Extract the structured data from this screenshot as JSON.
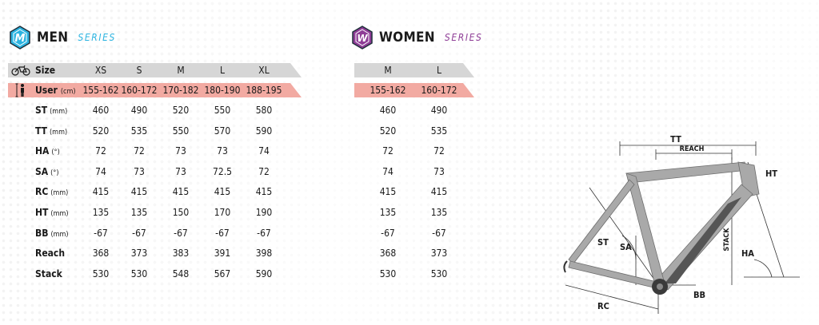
{
  "men": {
    "title": "MEN",
    "series_word": "SERIES",
    "accent": "#2bb3e0",
    "sizes": [
      "XS",
      "S",
      "M",
      "L",
      "XL"
    ],
    "users": [
      "155-162",
      "160-172",
      "170-182",
      "180-190",
      "188-195"
    ]
  },
  "women": {
    "title": "WOMEN",
    "series_word": "SERIES",
    "accent": "#8e3d96",
    "sizes": [
      "M",
      "L"
    ],
    "users": [
      "155-162",
      "160-172"
    ]
  },
  "header": {
    "size_label": "Size",
    "user_label": "User",
    "user_unit": "(cm)",
    "size_icon": "bicycle-icon",
    "user_icon": "person-height-icon"
  },
  "rows": [
    {
      "label": "ST",
      "unit": "(mm)",
      "men": [
        "460",
        "490",
        "520",
        "550",
        "580"
      ],
      "women": [
        "460",
        "490"
      ]
    },
    {
      "label": "TT",
      "unit": "(mm)",
      "men": [
        "520",
        "535",
        "550",
        "570",
        "590"
      ],
      "women": [
        "520",
        "535"
      ]
    },
    {
      "label": "HA",
      "unit": "(°)",
      "men": [
        "72",
        "72",
        "73",
        "73",
        "74"
      ],
      "women": [
        "72",
        "72"
      ]
    },
    {
      "label": "SA",
      "unit": "(°)",
      "men": [
        "74",
        "73",
        "73",
        "72.5",
        "72"
      ],
      "women": [
        "74",
        "73"
      ]
    },
    {
      "label": "RC",
      "unit": "(mm)",
      "men": [
        "415",
        "415",
        "415",
        "415",
        "415"
      ],
      "women": [
        "415",
        "415"
      ]
    },
    {
      "label": "HT",
      "unit": "(mm)",
      "men": [
        "135",
        "135",
        "150",
        "170",
        "190"
      ],
      "women": [
        "135",
        "135"
      ]
    },
    {
      "label": "BB",
      "unit": "(mm)",
      "men": [
        "-67",
        "-67",
        "-67",
        "-67",
        "-67"
      ],
      "women": [
        "-67",
        "-67"
      ]
    },
    {
      "label": "Reach",
      "unit": "",
      "men": [
        "368",
        "373",
        "383",
        "391",
        "398"
      ],
      "women": [
        "368",
        "373"
      ]
    },
    {
      "label": "Stack",
      "unit": "",
      "men": [
        "530",
        "530",
        "548",
        "567",
        "590"
      ],
      "women": [
        "530",
        "530"
      ]
    }
  ],
  "diagram": {
    "labels": {
      "tt": "TT",
      "reach": "REACH",
      "ht": "HT",
      "st": "ST",
      "sa": "SA",
      "stack": "STACK",
      "ha": "HA",
      "bb": "BB",
      "rc": "RC"
    },
    "frame_color": "#a9a9a9",
    "frame_dark": "#555555"
  }
}
